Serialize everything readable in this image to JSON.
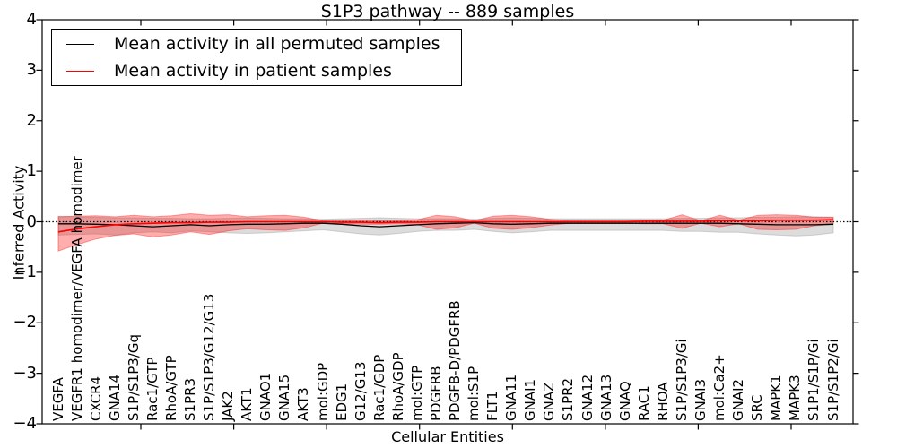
{
  "title": "S1P3 pathway -- 889 samples",
  "axes": {
    "xlabel": "Cellular Entities",
    "ylabel": "Inferred Activity",
    "ylim": [
      -4,
      4
    ],
    "yticks": [
      4,
      3,
      2,
      1,
      0,
      -1,
      -2,
      -3,
      -4
    ]
  },
  "legend": {
    "items": [
      {
        "label": "Mean activity in all permuted samples",
        "color": "#000000"
      },
      {
        "label": "Mean activity in patient samples",
        "color": "#ff0000"
      }
    ]
  },
  "chart_data": {
    "type": "line",
    "title": "S1P3 pathway -- 889 samples",
    "xlabel": "Cellular Entities",
    "ylabel": "Inferred Activity",
    "ylim": [
      -4,
      4
    ],
    "grid": false,
    "zero_line": true,
    "legend_position": "upper left",
    "categories": [
      "VEGFA",
      "VEGFR1 homodimer/VEGFA homodimer",
      "CXCR4",
      "GNA14",
      "S1P/S1P3/Gq",
      "Rac1/GTP",
      "RhoA/GTP",
      "S1PR3",
      "S1P/S1P3/G12/G13",
      "JAK2",
      "AKT1",
      "GNAO1",
      "GNA15",
      "AKT3",
      "mol:GDP",
      "EDG1",
      "G12/G13",
      "Rac1/GDP",
      "RhoA/GDP",
      "mol:GTP",
      "PDGFRB",
      "PDGFB-D/PDGFRB",
      "mol:S1P",
      "FLT1",
      "GNA11",
      "GNAI1",
      "GNAZ",
      "S1PR2",
      "GNA12",
      "GNA13",
      "GNAQ",
      "RAC1",
      "RHOA",
      "S1P/S1P3/Gi",
      "GNAI3",
      "mol:Ca2+",
      "GNAI2",
      "SRC",
      "MAPK1",
      "MAPK3",
      "S1P1/S1P/Gi",
      "S1P/S1P2/Gi"
    ],
    "series": [
      {
        "name": "Mean activity in all permuted samples",
        "color": "#000000",
        "band_color": "#8c8c8c",
        "band_opacity": 0.3,
        "values": [
          -0.04,
          -0.04,
          -0.05,
          -0.06,
          -0.08,
          -0.1,
          -0.08,
          -0.06,
          -0.08,
          -0.06,
          -0.05,
          -0.05,
          -0.04,
          -0.03,
          -0.03,
          -0.05,
          -0.08,
          -0.1,
          -0.08,
          -0.06,
          -0.04,
          -0.03,
          -0.02,
          -0.04,
          -0.05,
          -0.04,
          -0.03,
          -0.03,
          -0.03,
          -0.03,
          -0.03,
          -0.03,
          -0.03,
          -0.03,
          -0.03,
          -0.03,
          -0.04,
          -0.05,
          -0.06,
          -0.06,
          -0.06,
          -0.05
        ],
        "band_upper": [
          0.11,
          0.1,
          0.09,
          0.08,
          0.08,
          0.07,
          0.07,
          0.06,
          0.06,
          0.07,
          0.08,
          0.07,
          0.06,
          0.06,
          0.05,
          0.06,
          0.07,
          0.08,
          0.07,
          0.06,
          0.06,
          0.06,
          0.05,
          0.07,
          0.08,
          0.07,
          0.06,
          0.06,
          0.06,
          0.06,
          0.06,
          0.06,
          0.06,
          0.07,
          0.07,
          0.08,
          0.08,
          0.09,
          0.09,
          0.1,
          0.1,
          0.09
        ],
        "band_lower": [
          -0.26,
          -0.25,
          -0.24,
          -0.26,
          -0.22,
          -0.2,
          -0.22,
          -0.18,
          -0.2,
          -0.22,
          -0.23,
          -0.22,
          -0.2,
          -0.18,
          -0.16,
          -0.2,
          -0.24,
          -0.26,
          -0.23,
          -0.19,
          -0.17,
          -0.17,
          -0.15,
          -0.19,
          -0.22,
          -0.2,
          -0.17,
          -0.17,
          -0.17,
          -0.17,
          -0.17,
          -0.17,
          -0.17,
          -0.19,
          -0.19,
          -0.21,
          -0.21,
          -0.24,
          -0.26,
          -0.28,
          -0.26,
          -0.22
        ]
      },
      {
        "name": "Mean activity in patient samples",
        "color": "#ff0000",
        "band_color": "#ff0000",
        "band_opacity": 0.32,
        "values": [
          -0.2,
          -0.14,
          -0.1,
          -0.06,
          -0.04,
          -0.03,
          -0.02,
          -0.02,
          -0.01,
          -0.01,
          0.0,
          0.0,
          0.0,
          0.0,
          0.0,
          -0.01,
          -0.01,
          -0.02,
          -0.01,
          -0.01,
          0.0,
          0.0,
          0.0,
          0.0,
          0.0,
          0.0,
          0.0,
          0.0,
          0.0,
          0.0,
          0.0,
          0.01,
          0.01,
          0.01,
          0.01,
          0.02,
          0.02,
          0.02,
          0.03,
          0.03,
          0.03,
          0.04
        ],
        "band_upper": [
          0.1,
          0.11,
          0.12,
          0.1,
          0.13,
          0.1,
          0.12,
          0.16,
          0.13,
          0.14,
          0.1,
          0.12,
          0.13,
          0.09,
          0.02,
          0.02,
          0.03,
          0.02,
          0.02,
          0.04,
          0.13,
          0.1,
          0.02,
          0.11,
          0.13,
          0.1,
          0.05,
          0.02,
          0.02,
          0.02,
          0.02,
          0.03,
          0.03,
          0.14,
          0.02,
          0.13,
          0.03,
          0.13,
          0.14,
          0.13,
          0.09,
          0.09
        ],
        "band_lower": [
          -0.58,
          -0.45,
          -0.34,
          -0.27,
          -0.24,
          -0.3,
          -0.26,
          -0.2,
          -0.25,
          -0.18,
          -0.14,
          -0.16,
          -0.17,
          -0.12,
          -0.03,
          -0.04,
          -0.05,
          -0.05,
          -0.04,
          -0.06,
          -0.15,
          -0.12,
          -0.03,
          -0.13,
          -0.15,
          -0.12,
          -0.07,
          -0.03,
          -0.03,
          -0.03,
          -0.03,
          -0.04,
          -0.04,
          -0.13,
          -0.03,
          -0.1,
          -0.04,
          -0.15,
          -0.16,
          -0.15,
          -0.08,
          -0.05
        ]
      }
    ]
  }
}
